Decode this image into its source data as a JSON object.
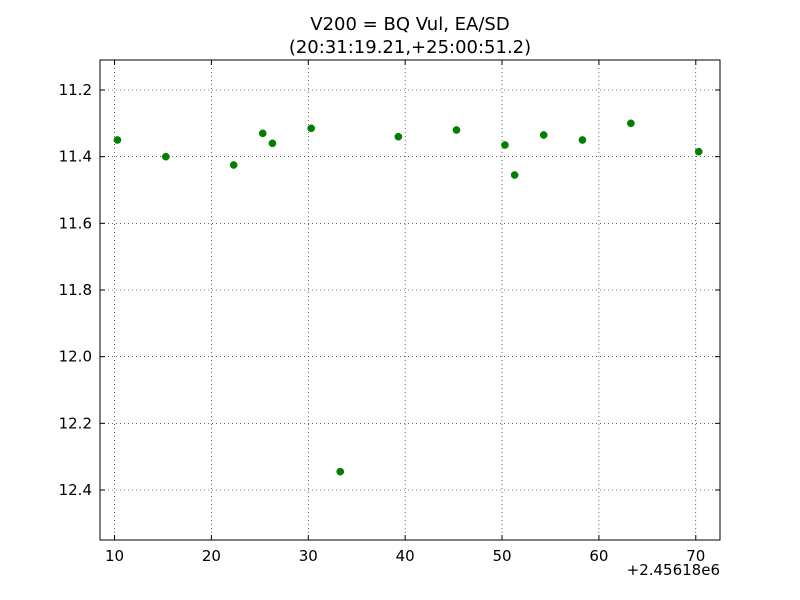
{
  "chart_data": {
    "type": "scatter",
    "title_line1": "V200 = BQ Vul, EA/SD",
    "title_line2": "(20:31:19.21,+25:00:51.2)",
    "xlabel": "",
    "ylabel": "",
    "x_offset_label": "+2.45618e6",
    "xlim": [
      8.5,
      72.5
    ],
    "ylim": [
      12.55,
      11.11
    ],
    "y_inverted": true,
    "x_ticks": [
      10,
      20,
      30,
      40,
      50,
      60,
      70
    ],
    "x_tick_labels": [
      "10",
      "20",
      "30",
      "40",
      "50",
      "60",
      "70"
    ],
    "y_ticks": [
      11.2,
      11.4,
      11.6,
      11.8,
      12.0,
      12.2,
      12.4
    ],
    "y_tick_labels": [
      "11.2",
      "11.4",
      "11.6",
      "11.8",
      "12.0",
      "12.2",
      "12.4"
    ],
    "grid": true,
    "marker_color": "#007f00",
    "points": [
      {
        "x": 10.3,
        "y": 11.35
      },
      {
        "x": 15.3,
        "y": 11.4
      },
      {
        "x": 22.3,
        "y": 11.425
      },
      {
        "x": 25.3,
        "y": 11.33
      },
      {
        "x": 26.3,
        "y": 11.36
      },
      {
        "x": 30.3,
        "y": 11.315
      },
      {
        "x": 33.3,
        "y": 12.345
      },
      {
        "x": 39.3,
        "y": 11.34
      },
      {
        "x": 45.3,
        "y": 11.32
      },
      {
        "x": 50.3,
        "y": 11.365
      },
      {
        "x": 51.3,
        "y": 11.455
      },
      {
        "x": 54.3,
        "y": 11.335
      },
      {
        "x": 58.3,
        "y": 11.35
      },
      {
        "x": 63.3,
        "y": 11.3
      },
      {
        "x": 70.3,
        "y": 11.385
      }
    ]
  }
}
